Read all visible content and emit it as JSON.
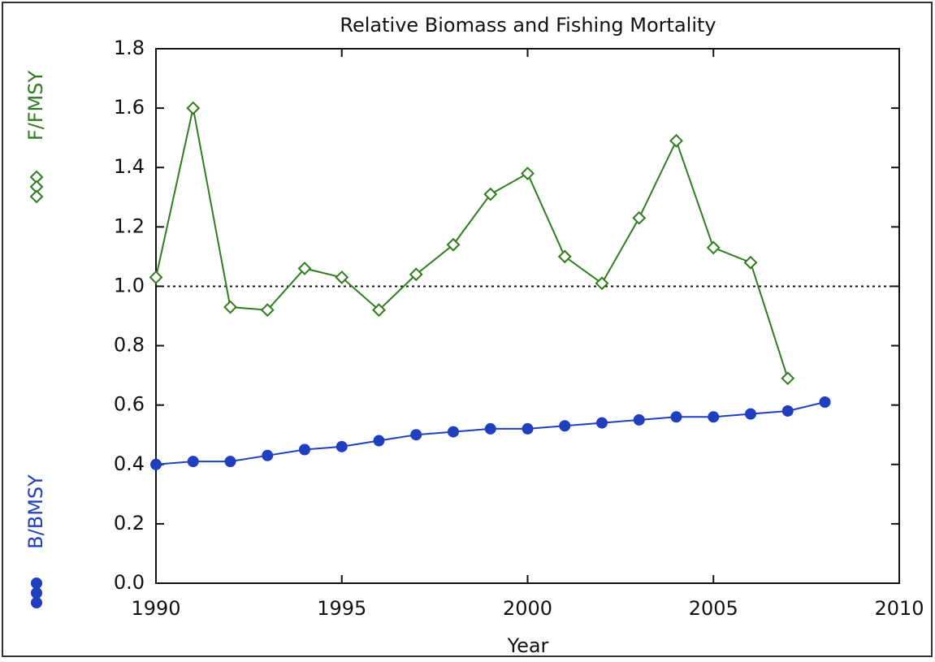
{
  "chart_data": {
    "type": "line",
    "title": "Relative Biomass and Fishing Mortality",
    "x_label": "Year",
    "x": [
      1990,
      1991,
      1992,
      1993,
      1994,
      1995,
      1996,
      1997,
      1998,
      1999,
      2000,
      2001,
      2002,
      2003,
      2004,
      2005,
      2006,
      2007,
      2008
    ],
    "series": [
      {
        "name": "F/FMSY",
        "color": "#2f7d1f",
        "marker": "diamond",
        "values": [
          1.03,
          1.6,
          0.93,
          0.92,
          1.06,
          1.03,
          0.92,
          1.04,
          1.14,
          1.31,
          1.38,
          1.1,
          1.01,
          1.23,
          1.49,
          1.13,
          1.08,
          0.69,
          null
        ]
      },
      {
        "name": "B/BMSY",
        "color": "#1f3fbf",
        "marker": "circle",
        "values": [
          0.4,
          0.41,
          0.41,
          0.43,
          0.45,
          0.46,
          0.48,
          0.5,
          0.51,
          0.52,
          0.52,
          0.53,
          0.54,
          0.55,
          0.56,
          0.56,
          0.57,
          0.58,
          0.61
        ]
      }
    ],
    "reference_line": 1.0,
    "xlim": [
      1990,
      2010
    ],
    "xticks": [
      1990,
      1995,
      2000,
      2005,
      2010
    ],
    "ylim": [
      0,
      1.8
    ],
    "yticks": [
      {
        "value": 0,
        "label": "0.0"
      },
      0.2,
      0.4,
      0.6,
      0.8,
      {
        "value": 1,
        "label": "1.0"
      },
      1.2,
      1.4,
      1.6,
      1.8
    ],
    "grid": false
  }
}
